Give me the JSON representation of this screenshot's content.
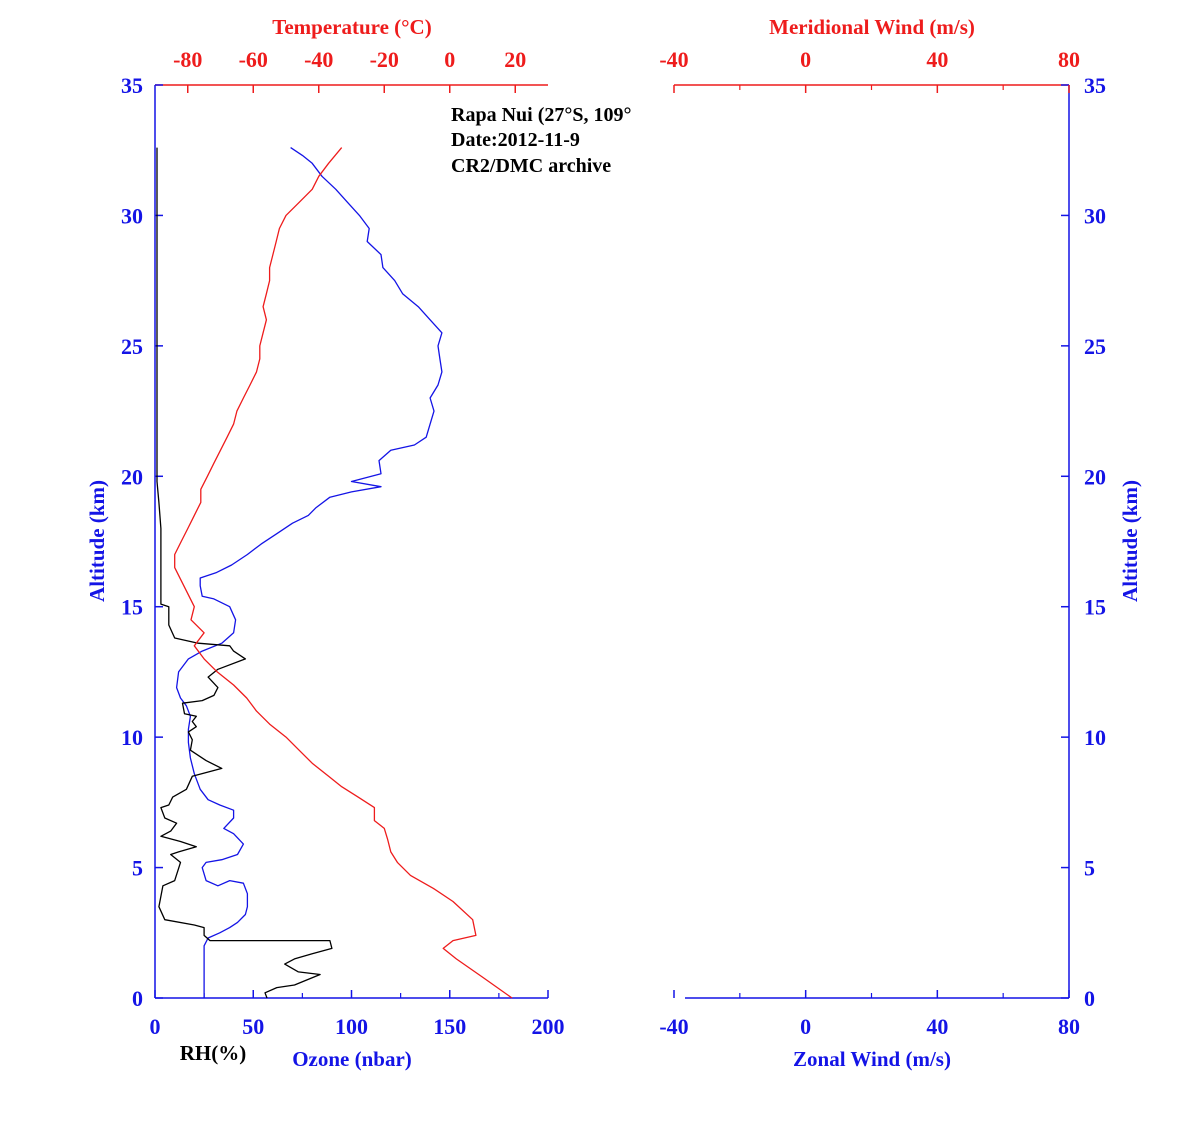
{
  "colors": {
    "blue": "#1414e6",
    "red": "#ee1c1c",
    "black": "#000000"
  },
  "annotation": [
    "Rapa Nui (27°S, 109°",
    "Date:2012-11-9",
    "CR2/DMC archive"
  ],
  "chart_data": [
    {
      "type": "line",
      "panel": "left",
      "xlabel_bottom": "Ozone (nbar)",
      "xlabel_bottom_secondary": "RH(%)",
      "xlabel_top": "Temperature (°C)",
      "ylabel": "Altitude (km)",
      "ylabel_right": "Altitude (km)",
      "xlim_bottom": [
        0,
        200
      ],
      "xlim_top": [
        -90,
        30
      ],
      "ylim": [
        0,
        35
      ],
      "xticks_bottom": [
        "0",
        "50",
        "100",
        "150",
        "200"
      ],
      "xticks_top": [
        "-80",
        "-60",
        "-40",
        "-20",
        "0",
        "20"
      ],
      "yticks": [
        "0",
        "5",
        "10",
        "15",
        "20",
        "25",
        "30",
        "35"
      ],
      "series": [
        {
          "name": "Ozone",
          "axis": "bottom",
          "color": "#1414e6",
          "points": [
            [
              25,
              0
            ],
            [
              25,
              0.5
            ],
            [
              25,
              1
            ],
            [
              25,
              1.5
            ],
            [
              25,
              2
            ],
            [
              27,
              2.3
            ],
            [
              33,
              2.5
            ],
            [
              38,
              2.7
            ],
            [
              42,
              2.9
            ],
            [
              46,
              3.2
            ],
            [
              47,
              3.5
            ],
            [
              47,
              4
            ],
            [
              45,
              4.4
            ],
            [
              38,
              4.5
            ],
            [
              32,
              4.3
            ],
            [
              26,
              4.5
            ],
            [
              24,
              5
            ],
            [
              26,
              5.2
            ],
            [
              34,
              5.3
            ],
            [
              42,
              5.5
            ],
            [
              45,
              5.9
            ],
            [
              40,
              6.3
            ],
            [
              35,
              6.5
            ],
            [
              40,
              6.9
            ],
            [
              40,
              7.2
            ],
            [
              33,
              7.4
            ],
            [
              27,
              7.6
            ],
            [
              23,
              8
            ],
            [
              20,
              8.6
            ],
            [
              18,
              9.2
            ],
            [
              17,
              9.8
            ],
            [
              17,
              10.3
            ],
            [
              18,
              10.8
            ],
            [
              16,
              11.2
            ],
            [
              13,
              11.5
            ],
            [
              11,
              11.9
            ],
            [
              12,
              12.5
            ],
            [
              17,
              13
            ],
            [
              24,
              13.3
            ],
            [
              34,
              13.6
            ],
            [
              40,
              14
            ],
            [
              41,
              14.5
            ],
            [
              38,
              15
            ],
            [
              30,
              15.3
            ],
            [
              24,
              15.4
            ],
            [
              23,
              15.8
            ],
            [
              23,
              16.1
            ],
            [
              31,
              16.3
            ],
            [
              39,
              16.6
            ],
            [
              47,
              17
            ],
            [
              54,
              17.4
            ],
            [
              62,
              17.8
            ],
            [
              70,
              18.2
            ],
            [
              78,
              18.5
            ],
            [
              82,
              18.8
            ],
            [
              89,
              19.2
            ],
            [
              100,
              19.4
            ],
            [
              115,
              19.6
            ],
            [
              100,
              19.8
            ],
            [
              115,
              20.1
            ],
            [
              114,
              20.6
            ],
            [
              120,
              21
            ],
            [
              132,
              21.2
            ],
            [
              138,
              21.5
            ],
            [
              140,
              22
            ],
            [
              142,
              22.5
            ],
            [
              140,
              23
            ],
            [
              144,
              23.5
            ],
            [
              146,
              24
            ],
            [
              145,
              24.5
            ],
            [
              144,
              25
            ],
            [
              146,
              25.5
            ],
            [
              140,
              26
            ],
            [
              134,
              26.5
            ],
            [
              126,
              27
            ],
            [
              122,
              27.5
            ],
            [
              116,
              28
            ],
            [
              115,
              28.5
            ],
            [
              108,
              29
            ],
            [
              109,
              29.5
            ],
            [
              104,
              30
            ],
            [
              98,
              30.5
            ],
            [
              92,
              31
            ],
            [
              85,
              31.5
            ],
            [
              80,
              32
            ],
            [
              75,
              32.3
            ],
            [
              69,
              32.6
            ]
          ]
        },
        {
          "name": "RH",
          "axis": "bottom",
          "color": "#000000",
          "points": [
            [
              57,
              0
            ],
            [
              56,
              0.2
            ],
            [
              62,
              0.4
            ],
            [
              71,
              0.5
            ],
            [
              84,
              0.9
            ],
            [
              73,
              1
            ],
            [
              66,
              1.3
            ],
            [
              71,
              1.5
            ],
            [
              80,
              1.7
            ],
            [
              90,
              1.9
            ],
            [
              89,
              2.2
            ],
            [
              28,
              2.2
            ],
            [
              25,
              2.4
            ],
            [
              25,
              2.7
            ],
            [
              20,
              2.8
            ],
            [
              5,
              3
            ],
            [
              2,
              3.5
            ],
            [
              4,
              4.3
            ],
            [
              10,
              4.5
            ],
            [
              13,
              5.2
            ],
            [
              8,
              5.5
            ],
            [
              12,
              5.6
            ],
            [
              21,
              5.8
            ],
            [
              13,
              6
            ],
            [
              3,
              6.2
            ],
            [
              8,
              6.4
            ],
            [
              11,
              6.7
            ],
            [
              5,
              6.9
            ],
            [
              3,
              7.3
            ],
            [
              7,
              7.4
            ],
            [
              9,
              7.7
            ],
            [
              16,
              8
            ],
            [
              19,
              8.5
            ],
            [
              34,
              8.8
            ],
            [
              26,
              9.1
            ],
            [
              18,
              9.5
            ],
            [
              19,
              9.9
            ],
            [
              17,
              10.2
            ],
            [
              21,
              10.4
            ],
            [
              19,
              10.6
            ],
            [
              21,
              10.8
            ],
            [
              15,
              10.9
            ],
            [
              14,
              11.3
            ],
            [
              24,
              11.4
            ],
            [
              30,
              11.6
            ],
            [
              32,
              11.9
            ],
            [
              27,
              12.3
            ],
            [
              32,
              12.6
            ],
            [
              46,
              13
            ],
            [
              40,
              13.3
            ],
            [
              38,
              13.5
            ],
            [
              22,
              13.6
            ],
            [
              10,
              13.8
            ],
            [
              7,
              14.3
            ],
            [
              7,
              15
            ],
            [
              3,
              15.1
            ],
            [
              3,
              15.8
            ],
            [
              3,
              17
            ],
            [
              3,
              18
            ],
            [
              2,
              19
            ],
            [
              1,
              19.8
            ],
            [
              1,
              21
            ],
            [
              1,
              23
            ],
            [
              1,
              25
            ],
            [
              1,
              27
            ],
            [
              1,
              29
            ],
            [
              1,
              31
            ],
            [
              1,
              32.6
            ]
          ]
        },
        {
          "name": "Temperature",
          "axis": "top",
          "color": "#ee1c1c",
          "points": [
            [
              19,
              0
            ],
            [
              10,
              0.8
            ],
            [
              2,
              1.5
            ],
            [
              -2,
              1.9
            ],
            [
              1,
              2.2
            ],
            [
              8,
              2.4
            ],
            [
              7,
              3
            ],
            [
              1,
              3.7
            ],
            [
              -5,
              4.2
            ],
            [
              -12,
              4.7
            ],
            [
              -16,
              5.2
            ],
            [
              -18,
              5.6
            ],
            [
              -19,
              6.1
            ],
            [
              -20,
              6.5
            ],
            [
              -23,
              6.8
            ],
            [
              -23,
              7.3
            ],
            [
              -28,
              7.7
            ],
            [
              -33,
              8.1
            ],
            [
              -37,
              8.5
            ],
            [
              -42,
              9
            ],
            [
              -46,
              9.5
            ],
            [
              -50,
              10
            ],
            [
              -55,
              10.5
            ],
            [
              -59,
              11
            ],
            [
              -62,
              11.5
            ],
            [
              -66,
              12
            ],
            [
              -71,
              12.5
            ],
            [
              -75,
              13
            ],
            [
              -78,
              13.5
            ],
            [
              -75,
              14
            ],
            [
              -79,
              14.5
            ],
            [
              -78,
              15
            ],
            [
              -80,
              15.5
            ],
            [
              -82,
              16
            ],
            [
              -84,
              16.5
            ],
            [
              -84,
              17
            ],
            [
              -82,
              17.5
            ],
            [
              -80,
              18
            ],
            [
              -78,
              18.5
            ],
            [
              -76,
              19
            ],
            [
              -76,
              19.5
            ],
            [
              -74,
              20
            ],
            [
              -72,
              20.5
            ],
            [
              -70,
              21
            ],
            [
              -68,
              21.5
            ],
            [
              -66,
              22
            ],
            [
              -65,
              22.5
            ],
            [
              -63,
              23
            ],
            [
              -61,
              23.5
            ],
            [
              -59,
              24
            ],
            [
              -58,
              24.5
            ],
            [
              -58,
              25
            ],
            [
              -57,
              25.5
            ],
            [
              -56,
              26
            ],
            [
              -57,
              26.5
            ],
            [
              -56,
              27
            ],
            [
              -55,
              27.5
            ],
            [
              -55,
              28
            ],
            [
              -54,
              28.5
            ],
            [
              -53,
              29
            ],
            [
              -52,
              29.5
            ],
            [
              -50,
              30
            ],
            [
              -46,
              30.5
            ],
            [
              -42,
              31
            ],
            [
              -40,
              31.5
            ],
            [
              -37,
              32
            ],
            [
              -33,
              32.6
            ]
          ]
        }
      ]
    },
    {
      "type": "line",
      "panel": "right",
      "xlabel_bottom": "Zonal Wind (m/s)",
      "xlabel_top": "Meridional Wind (m/s)",
      "xlim": [
        -40,
        80
      ],
      "ylim": [
        0,
        35
      ],
      "xticks_bottom": [
        "-40",
        "0",
        "40",
        "80"
      ],
      "xticks_top": [
        "-40",
        "0",
        "40",
        "80"
      ],
      "yticks": [
        "0",
        "5",
        "10",
        "15",
        "20",
        "25",
        "30",
        "35"
      ],
      "series": []
    }
  ]
}
